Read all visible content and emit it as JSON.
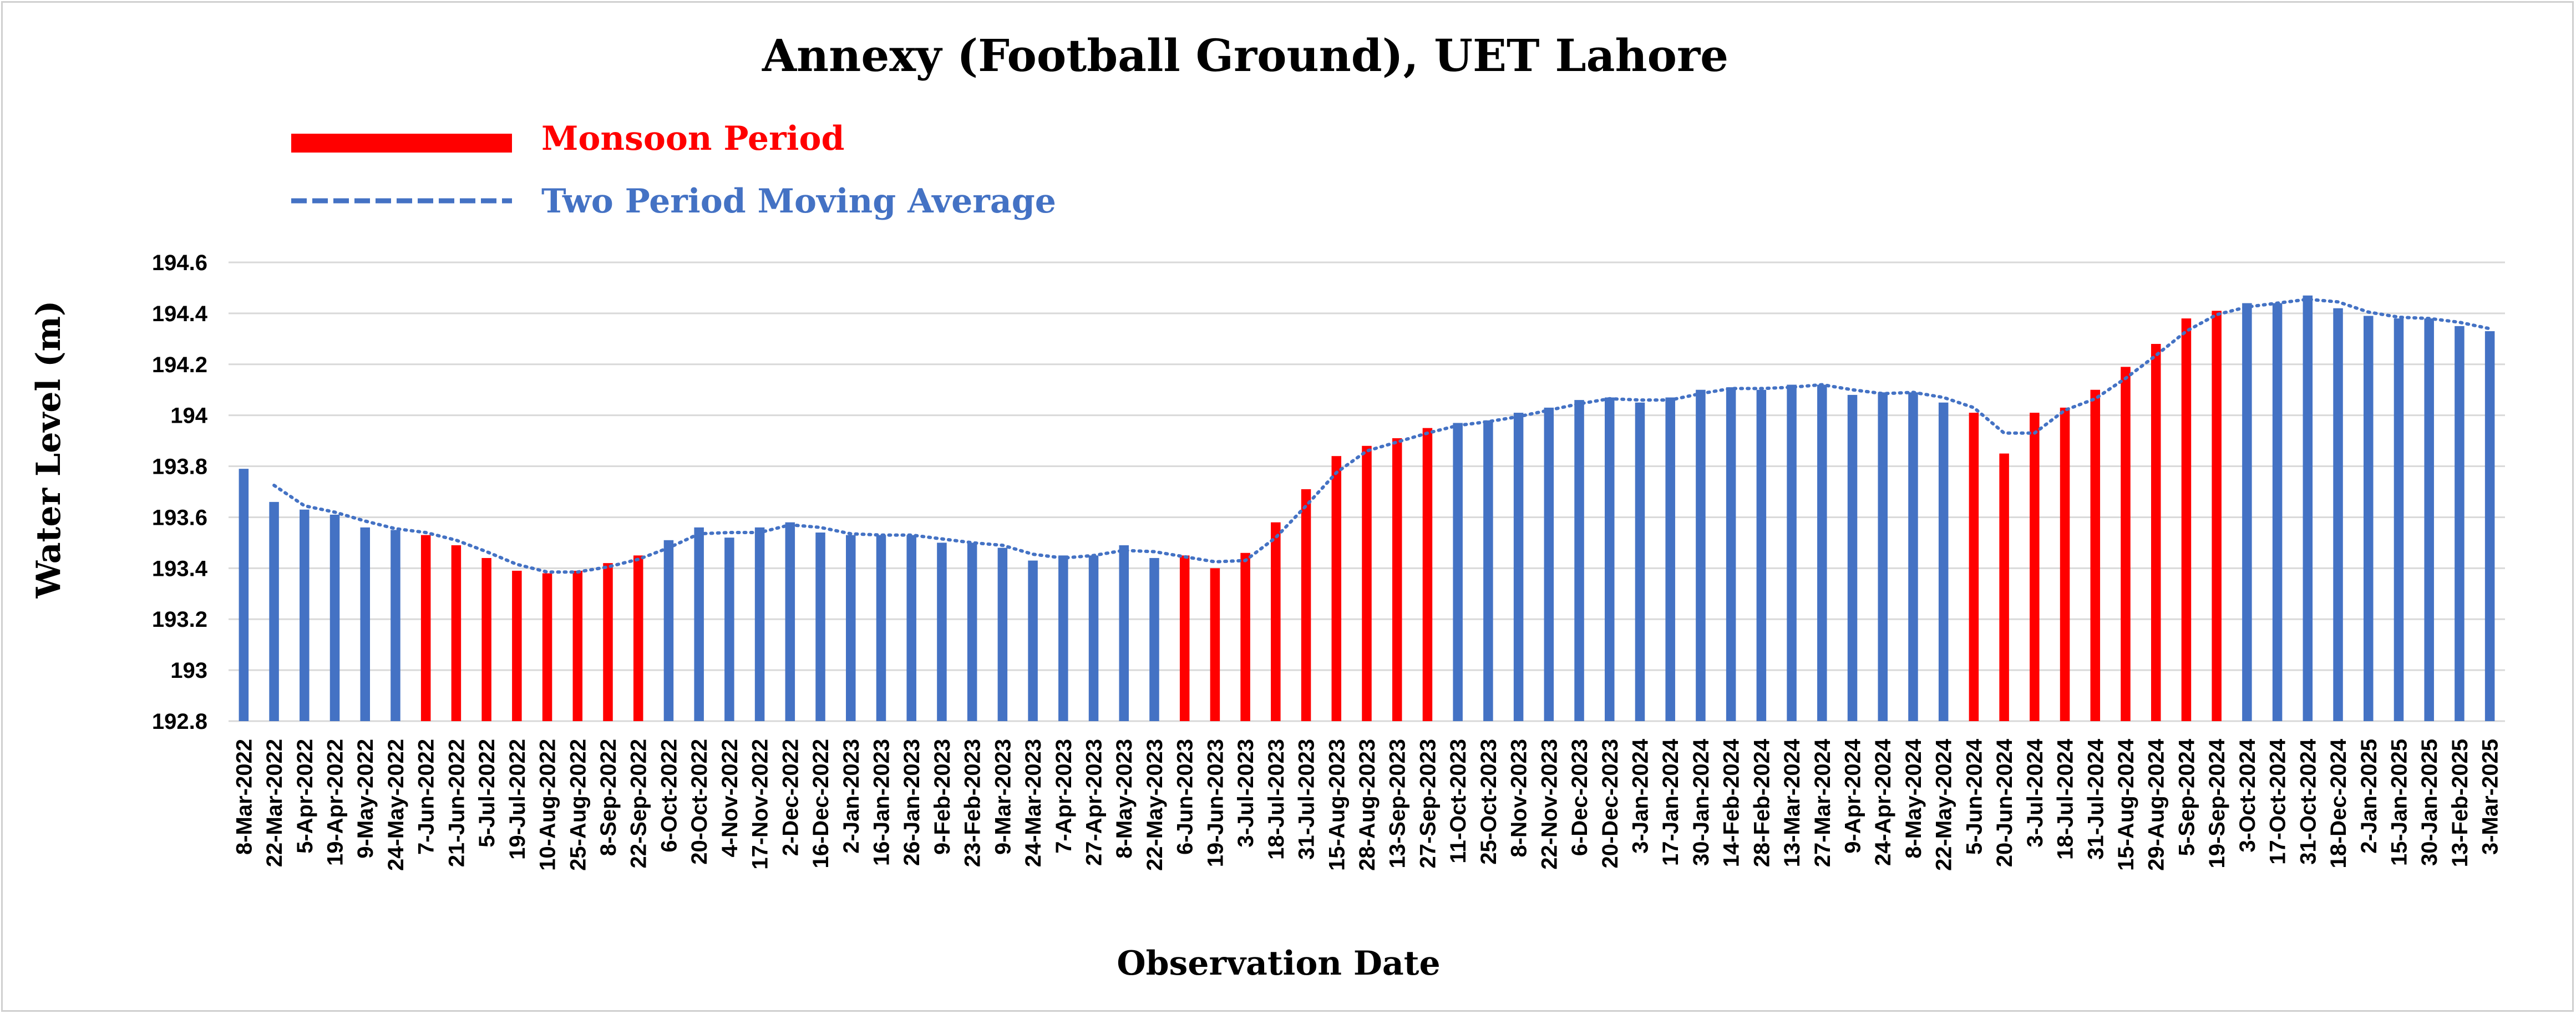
{
  "chart_data": {
    "type": "bar",
    "title": "Annexy (Football Ground), UET Lahore",
    "xlabel": "Observation Date",
    "ylabel": "Water Level (m)",
    "ylim": [
      192.8,
      194.6
    ],
    "yticks": [
      192.8,
      193,
      193.2,
      193.4,
      193.6,
      193.8,
      194,
      194.2,
      194.4,
      194.6
    ],
    "grid": true,
    "legend_placement": "top-left",
    "legend": [
      {
        "label": "Monsoon Period",
        "style": "solid-bar",
        "color": "#ff0000"
      },
      {
        "label": "Two Period Moving Average",
        "style": "dotted-line",
        "color": "#4472c4"
      }
    ],
    "colors": {
      "normal": "#4472c4",
      "monsoon": "#ff0000",
      "trend": "#4472c4",
      "grid": "#d9d9d9"
    },
    "categories": [
      "8-Mar-2022",
      "22-Mar-2022",
      "5-Apr-2022",
      "19-Apr-2022",
      "9-May-2022",
      "24-May-2022",
      "7-Jun-2022",
      "21-Jun-2022",
      "5-Jul-2022",
      "19-Jul-2022",
      "10-Aug-2022",
      "25-Aug-2022",
      "8-Sep-2022",
      "22-Sep-2022",
      "6-Oct-2022",
      "20-Oct-2022",
      "4-Nov-2022",
      "17-Nov-2022",
      "2-Dec-2022",
      "16-Dec-2022",
      "2-Jan-2023",
      "16-Jan-2023",
      "26-Jan-2023",
      "9-Feb-2023",
      "23-Feb-2023",
      "9-Mar-2023",
      "24-Mar-2023",
      "7-Apr-2023",
      "27-Apr-2023",
      "8-May-2023",
      "22-May-2023",
      "6-Jun-2023",
      "19-Jun-2023",
      "3-Jul-2023",
      "18-Jul-2023",
      "31-Jul-2023",
      "15-Aug-2023",
      "28-Aug-2023",
      "13-Sep-2023",
      "27-Sep-2023",
      "11-Oct-2023",
      "25-Oct-2023",
      "8-Nov-2023",
      "22-Nov-2023",
      "6-Dec-2023",
      "20-Dec-2023",
      "3-Jan-2024",
      "17-Jan-2024",
      "30-Jan-2024",
      "14-Feb-2024",
      "28-Feb-2024",
      "13-Mar-2024",
      "27-Mar-2024",
      "9-Apr-2024",
      "24-Apr-2024",
      "8-May-2024",
      "22-May-2024",
      "5-Jun-2024",
      "20-Jun-2024",
      "3-Jul-2024",
      "18-Jul-2024",
      "31-Jul-2024",
      "15-Aug-2024",
      "29-Aug-2024",
      "5-Sep-2024",
      "19-Sep-2024",
      "3-Oct-2024",
      "17-Oct-2024",
      "31-Oct-2024",
      "18-Dec-2024",
      "2-Jan-2025",
      "15-Jan-2025",
      "30-Jan-2025",
      "13-Feb-2025",
      "3-Mar-2025"
    ],
    "values": [
      193.79,
      193.66,
      193.63,
      193.61,
      193.56,
      193.55,
      193.53,
      193.49,
      193.44,
      193.39,
      193.38,
      193.39,
      193.42,
      193.45,
      193.51,
      193.56,
      193.52,
      193.56,
      193.58,
      193.54,
      193.53,
      193.53,
      193.53,
      193.5,
      193.5,
      193.48,
      193.43,
      193.45,
      193.45,
      193.49,
      193.44,
      193.45,
      193.4,
      193.46,
      193.58,
      193.71,
      193.84,
      193.88,
      193.91,
      193.95,
      193.97,
      193.98,
      194.01,
      194.03,
      194.06,
      194.07,
      194.05,
      194.07,
      194.1,
      194.11,
      194.1,
      194.12,
      194.12,
      194.08,
      194.09,
      194.09,
      194.05,
      194.01,
      193.85,
      194.01,
      194.03,
      194.1,
      194.19,
      194.28,
      194.38,
      194.41,
      194.44,
      194.44,
      194.47,
      194.42,
      194.39,
      194.38,
      194.38,
      194.35,
      194.33
    ],
    "monsoon": [
      false,
      false,
      false,
      false,
      false,
      false,
      true,
      true,
      true,
      true,
      true,
      true,
      true,
      true,
      false,
      false,
      false,
      false,
      false,
      false,
      false,
      false,
      false,
      false,
      false,
      false,
      false,
      false,
      false,
      false,
      false,
      true,
      true,
      true,
      true,
      true,
      true,
      true,
      true,
      true,
      false,
      false,
      false,
      false,
      false,
      false,
      false,
      false,
      false,
      false,
      false,
      false,
      false,
      false,
      false,
      false,
      false,
      true,
      true,
      true,
      true,
      true,
      true,
      true,
      true,
      true,
      false,
      false,
      false,
      false,
      false,
      false,
      false,
      false,
      false
    ],
    "moving_average_period": 2
  }
}
